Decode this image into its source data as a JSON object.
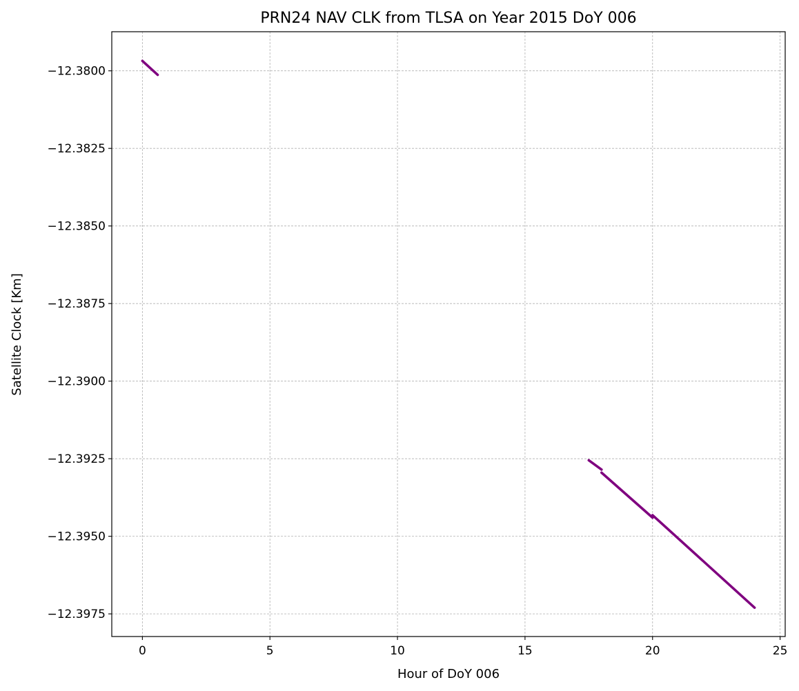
{
  "chart_data": {
    "type": "line",
    "title": "PRN24 NAV CLK from TLSA on Year 2015 DoY 006",
    "xlabel": "Hour of DoY 006",
    "ylabel": "Satellite Clock [Km]",
    "xlim": [
      -1.2,
      25.2
    ],
    "ylim": [
      -12.39823,
      -12.37874
    ],
    "xticks": [
      0,
      5,
      10,
      15,
      20,
      25
    ],
    "xtick_labels": [
      "0",
      "5",
      "10",
      "15",
      "20",
      "25"
    ],
    "yticks": [
      -12.38,
      -12.3825,
      -12.385,
      -12.3875,
      -12.39,
      -12.3925,
      -12.395,
      -12.3975
    ],
    "ytick_labels": [
      "−12.3800",
      "−12.3825",
      "−12.3850",
      "−12.3875",
      "−12.3900",
      "−12.3925",
      "−12.3950",
      "−12.3975"
    ],
    "grid": true,
    "color": "#7f007f",
    "series": [
      {
        "segments": [
          {
            "x": [
              0.0,
              0.6
            ],
            "y": [
              -12.37968,
              -12.38013
            ]
          },
          {
            "x": [
              17.5,
              18.0
            ],
            "y": [
              -12.39255,
              -12.39285
            ]
          },
          {
            "x": [
              18.0,
              20.0
            ],
            "y": [
              -12.39295,
              -12.3944
            ]
          },
          {
            "x": [
              20.0,
              24.0
            ],
            "y": [
              -12.39432,
              -12.3973
            ]
          }
        ]
      }
    ]
  }
}
